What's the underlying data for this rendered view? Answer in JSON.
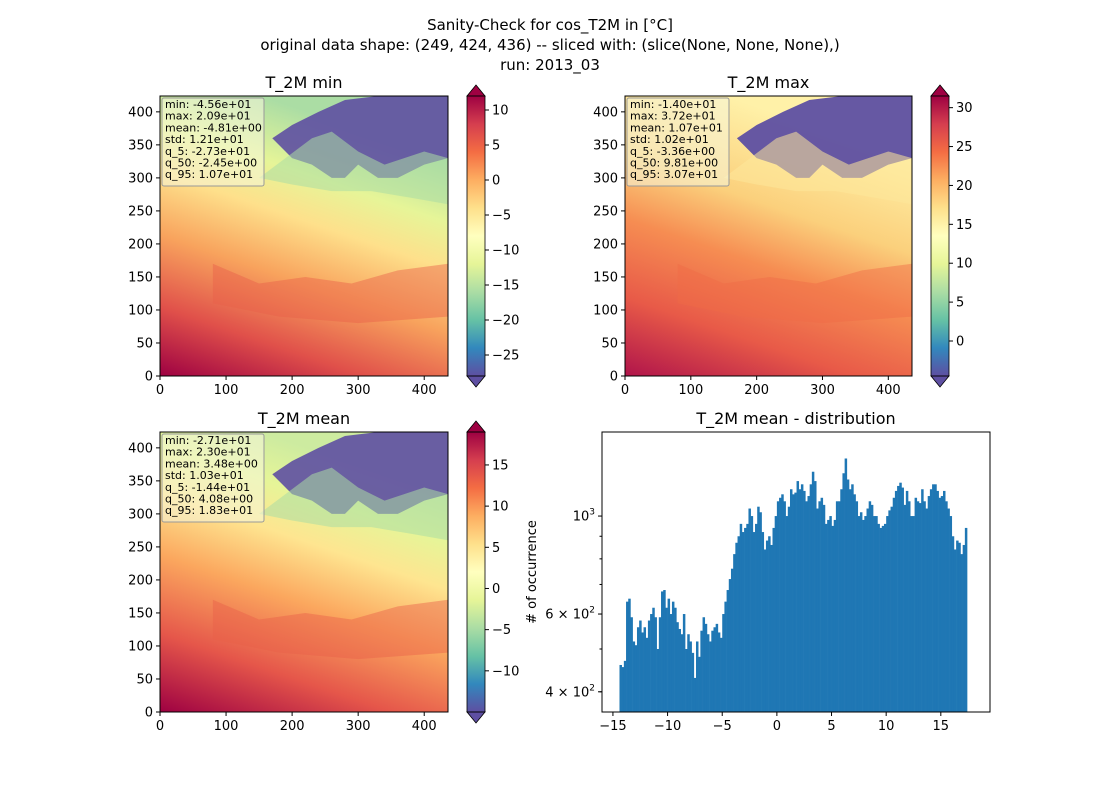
{
  "suptitle": {
    "line1": "Sanity-Check for cos_T2M in [°C]",
    "line2": "original data shape: (249, 424, 436) -- sliced with: (slice(None, None, None),)",
    "line3": "run: 2013_03"
  },
  "colors": {
    "hist_bar": "#1f77b4",
    "box_bg": "#f5f5dc",
    "colormap": [
      "#9e0142",
      "#d53e4f",
      "#f46d43",
      "#fdae61",
      "#fee08b",
      "#ffffbf",
      "#e6f598",
      "#abdda4",
      "#66c2a5",
      "#3288bd",
      "#5e4fa2"
    ]
  },
  "chart_data": [
    {
      "type": "heatmap",
      "title": "T_2M min",
      "xlabel": "",
      "ylabel": "",
      "xlim": [
        0,
        436
      ],
      "ylim": [
        0,
        424
      ],
      "x_ticks": [
        "0",
        "100",
        "200",
        "300",
        "400"
      ],
      "y_ticks": [
        "0",
        "50",
        "100",
        "150",
        "200",
        "250",
        "300",
        "350",
        "400"
      ],
      "colorbar": {
        "range": [
          -28,
          12
        ],
        "ticks": [
          "−25",
          "−20",
          "−15",
          "−10",
          "−5",
          "0",
          "5",
          "10"
        ],
        "tick_values": [
          -25,
          -20,
          -15,
          -10,
          -5,
          0,
          5,
          10
        ]
      },
      "stats": [
        "min: -4.56e+01",
        "max: 2.09e+01",
        "mean: -4.81e+00",
        "std: 1.21e+01",
        "q_5: -2.73e+01",
        "q_50: -2.45e+00",
        "q_95: 1.07e+01"
      ]
    },
    {
      "type": "heatmap",
      "title": "T_2M max",
      "xlabel": "",
      "ylabel": "",
      "xlim": [
        0,
        436
      ],
      "ylim": [
        0,
        424
      ],
      "x_ticks": [
        "0",
        "100",
        "200",
        "300",
        "400"
      ],
      "y_ticks": [
        "0",
        "50",
        "100",
        "150",
        "200",
        "250",
        "300",
        "350",
        "400"
      ],
      "colorbar": {
        "range": [
          -4.5,
          31.5
        ],
        "ticks": [
          "0",
          "5",
          "10",
          "15",
          "20",
          "25",
          "30"
        ],
        "tick_values": [
          0,
          5,
          10,
          15,
          20,
          25,
          30
        ]
      },
      "stats": [
        "min: -1.40e+01",
        "max: 3.72e+01",
        "mean: 1.07e+01",
        "std: 1.02e+01",
        "q_5: -3.36e+00",
        "q_50: 9.81e+00",
        "q_95: 3.07e+01"
      ]
    },
    {
      "type": "heatmap",
      "title": "T_2M mean",
      "xlabel": "",
      "ylabel": "",
      "xlim": [
        0,
        436
      ],
      "ylim": [
        0,
        424
      ],
      "x_ticks": [
        "0",
        "100",
        "200",
        "300",
        "400"
      ],
      "y_ticks": [
        "0",
        "50",
        "100",
        "150",
        "200",
        "250",
        "300",
        "350",
        "400"
      ],
      "colorbar": {
        "range": [
          -15,
          19
        ],
        "ticks": [
          "−10",
          "−5",
          "0",
          "5",
          "10",
          "15"
        ],
        "tick_values": [
          -10,
          -5,
          0,
          5,
          10,
          15
        ]
      },
      "stats": [
        "min: -2.71e+01",
        "max: 2.30e+01",
        "mean: 3.48e+00",
        "std: 1.03e+01",
        "q_5: -1.44e+01",
        "q_50: 4.08e+00",
        "q_95: 1.83e+01"
      ]
    },
    {
      "type": "bar",
      "title": "T_2M mean - distribution",
      "xlabel": "",
      "ylabel": "# of occurrence",
      "yscale": "log",
      "xlim": [
        -16.0,
        19.5
      ],
      "ylim": [
        360,
        1550
      ],
      "x_ticks": [
        "−15",
        "−10",
        "−5",
        "0",
        "5",
        "10",
        "15"
      ],
      "x_tick_values": [
        -15,
        -10,
        -5,
        0,
        5,
        10,
        15
      ],
      "y_ticks": [
        {
          "label": "4 × 10",
          "exp": "2",
          "value": 400
        },
        {
          "label": "6 × 10",
          "exp": "2",
          "value": 600
        },
        {
          "label": "10",
          "exp": "3",
          "value": 1000
        }
      ],
      "bin_start": -14.4,
      "bin_width": 0.2,
      "values": [
        460,
        455,
        470,
        640,
        650,
        590,
        520,
        510,
        560,
        580,
        545,
        560,
        530,
        580,
        600,
        620,
        590,
        500,
        590,
        675,
        680,
        620,
        650,
        600,
        640,
        620,
        575,
        555,
        540,
        600,
        500,
        540,
        520,
        490,
        430,
        520,
        480,
        550,
        590,
        570,
        540,
        520,
        550,
        560,
        570,
        545,
        530,
        600,
        640,
        680,
        720,
        760,
        820,
        870,
        900,
        960,
        920,
        940,
        960,
        1040,
        1000,
        920,
        960,
        1050,
        1020,
        920,
        840,
        880,
        900,
        860,
        940,
        1000,
        1080,
        1100,
        1120,
        1080,
        1000,
        1050,
        1150,
        1120,
        1130,
        1200,
        1150,
        1180,
        1140,
        1080,
        1110,
        1180,
        1260,
        1200,
        1040,
        1080,
        1100,
        1060,
        960,
        980,
        1000,
        950,
        980,
        1080,
        1080,
        1150,
        1250,
        1350,
        1210,
        1150,
        1180,
        1120,
        1080,
        1000,
        1020,
        980,
        1000,
        1040,
        1080,
        1060,
        1000,
        1000,
        960,
        940,
        950,
        960,
        1000,
        1030,
        1050,
        1100,
        1140,
        1170,
        1190,
        1160,
        1060,
        1140,
        1080,
        1000,
        1000,
        1100,
        1080,
        1070,
        1150,
        1080,
        1040,
        1110,
        1150,
        1180,
        1180,
        1140,
        1100,
        1110,
        1140,
        1080,
        1040,
        1000,
        900,
        840,
        880,
        870,
        820,
        860,
        940
      ]
    }
  ]
}
